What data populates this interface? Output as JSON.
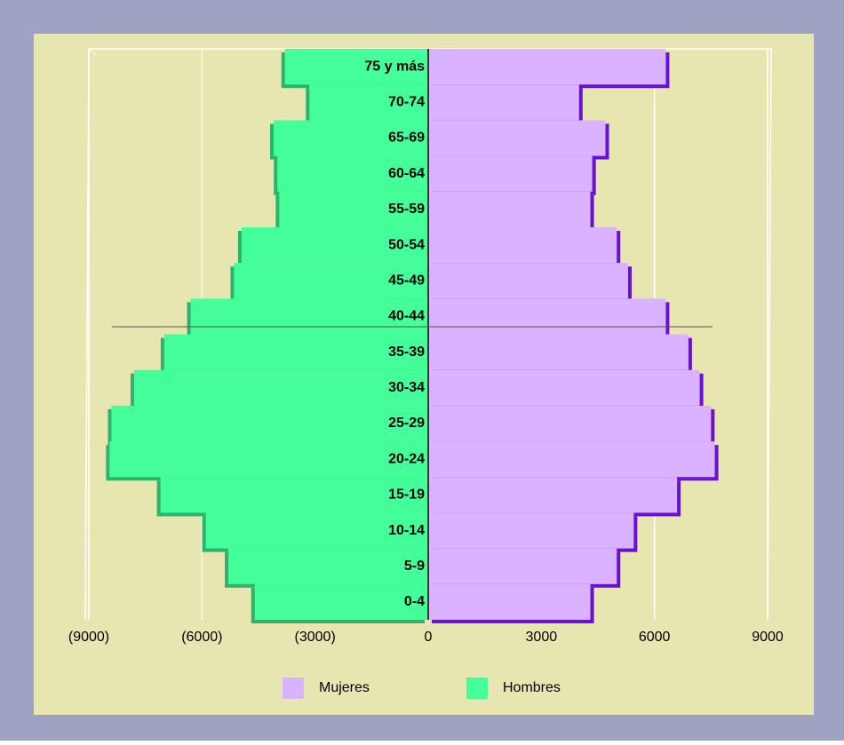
{
  "chart_data": {
    "type": "pyramid",
    "categories": [
      "0-4",
      "5-9",
      "10-14",
      "15-19",
      "20-24",
      "25-29",
      "30-34",
      "35-39",
      "40-44",
      "45-49",
      "50-54",
      "55-59",
      "60-64",
      "65-69",
      "70-74",
      "75 y más"
    ],
    "series": [
      {
        "name": "Mujeres",
        "color": "#d9b3ff",
        "shadow": "#6a10d0",
        "values": [
          4300,
          5000,
          5450,
          6600,
          7600,
          7500,
          7200,
          6900,
          6300,
          5300,
          5000,
          4300,
          4350,
          4700,
          4000,
          6300
        ]
      },
      {
        "name": "Hombres",
        "color": "#44ff99",
        "shadow": "#2db36b",
        "values": [
          -4600,
          -5300,
          -5900,
          -7100,
          -8450,
          -8400,
          -7800,
          -7000,
          -6300,
          -5150,
          -4950,
          -3950,
          -4000,
          -4100,
          -3150,
          -3800
        ]
      }
    ],
    "xlim": [
      -9000,
      9000
    ],
    "xticks": [
      {
        "value": -9000,
        "label": "(9000)"
      },
      {
        "value": -6000,
        "label": "(6000)"
      },
      {
        "value": -3000,
        "label": "(3000)"
      },
      0,
      3000,
      6000,
      9000
    ],
    "grid": true,
    "legend": "bottom"
  }
}
